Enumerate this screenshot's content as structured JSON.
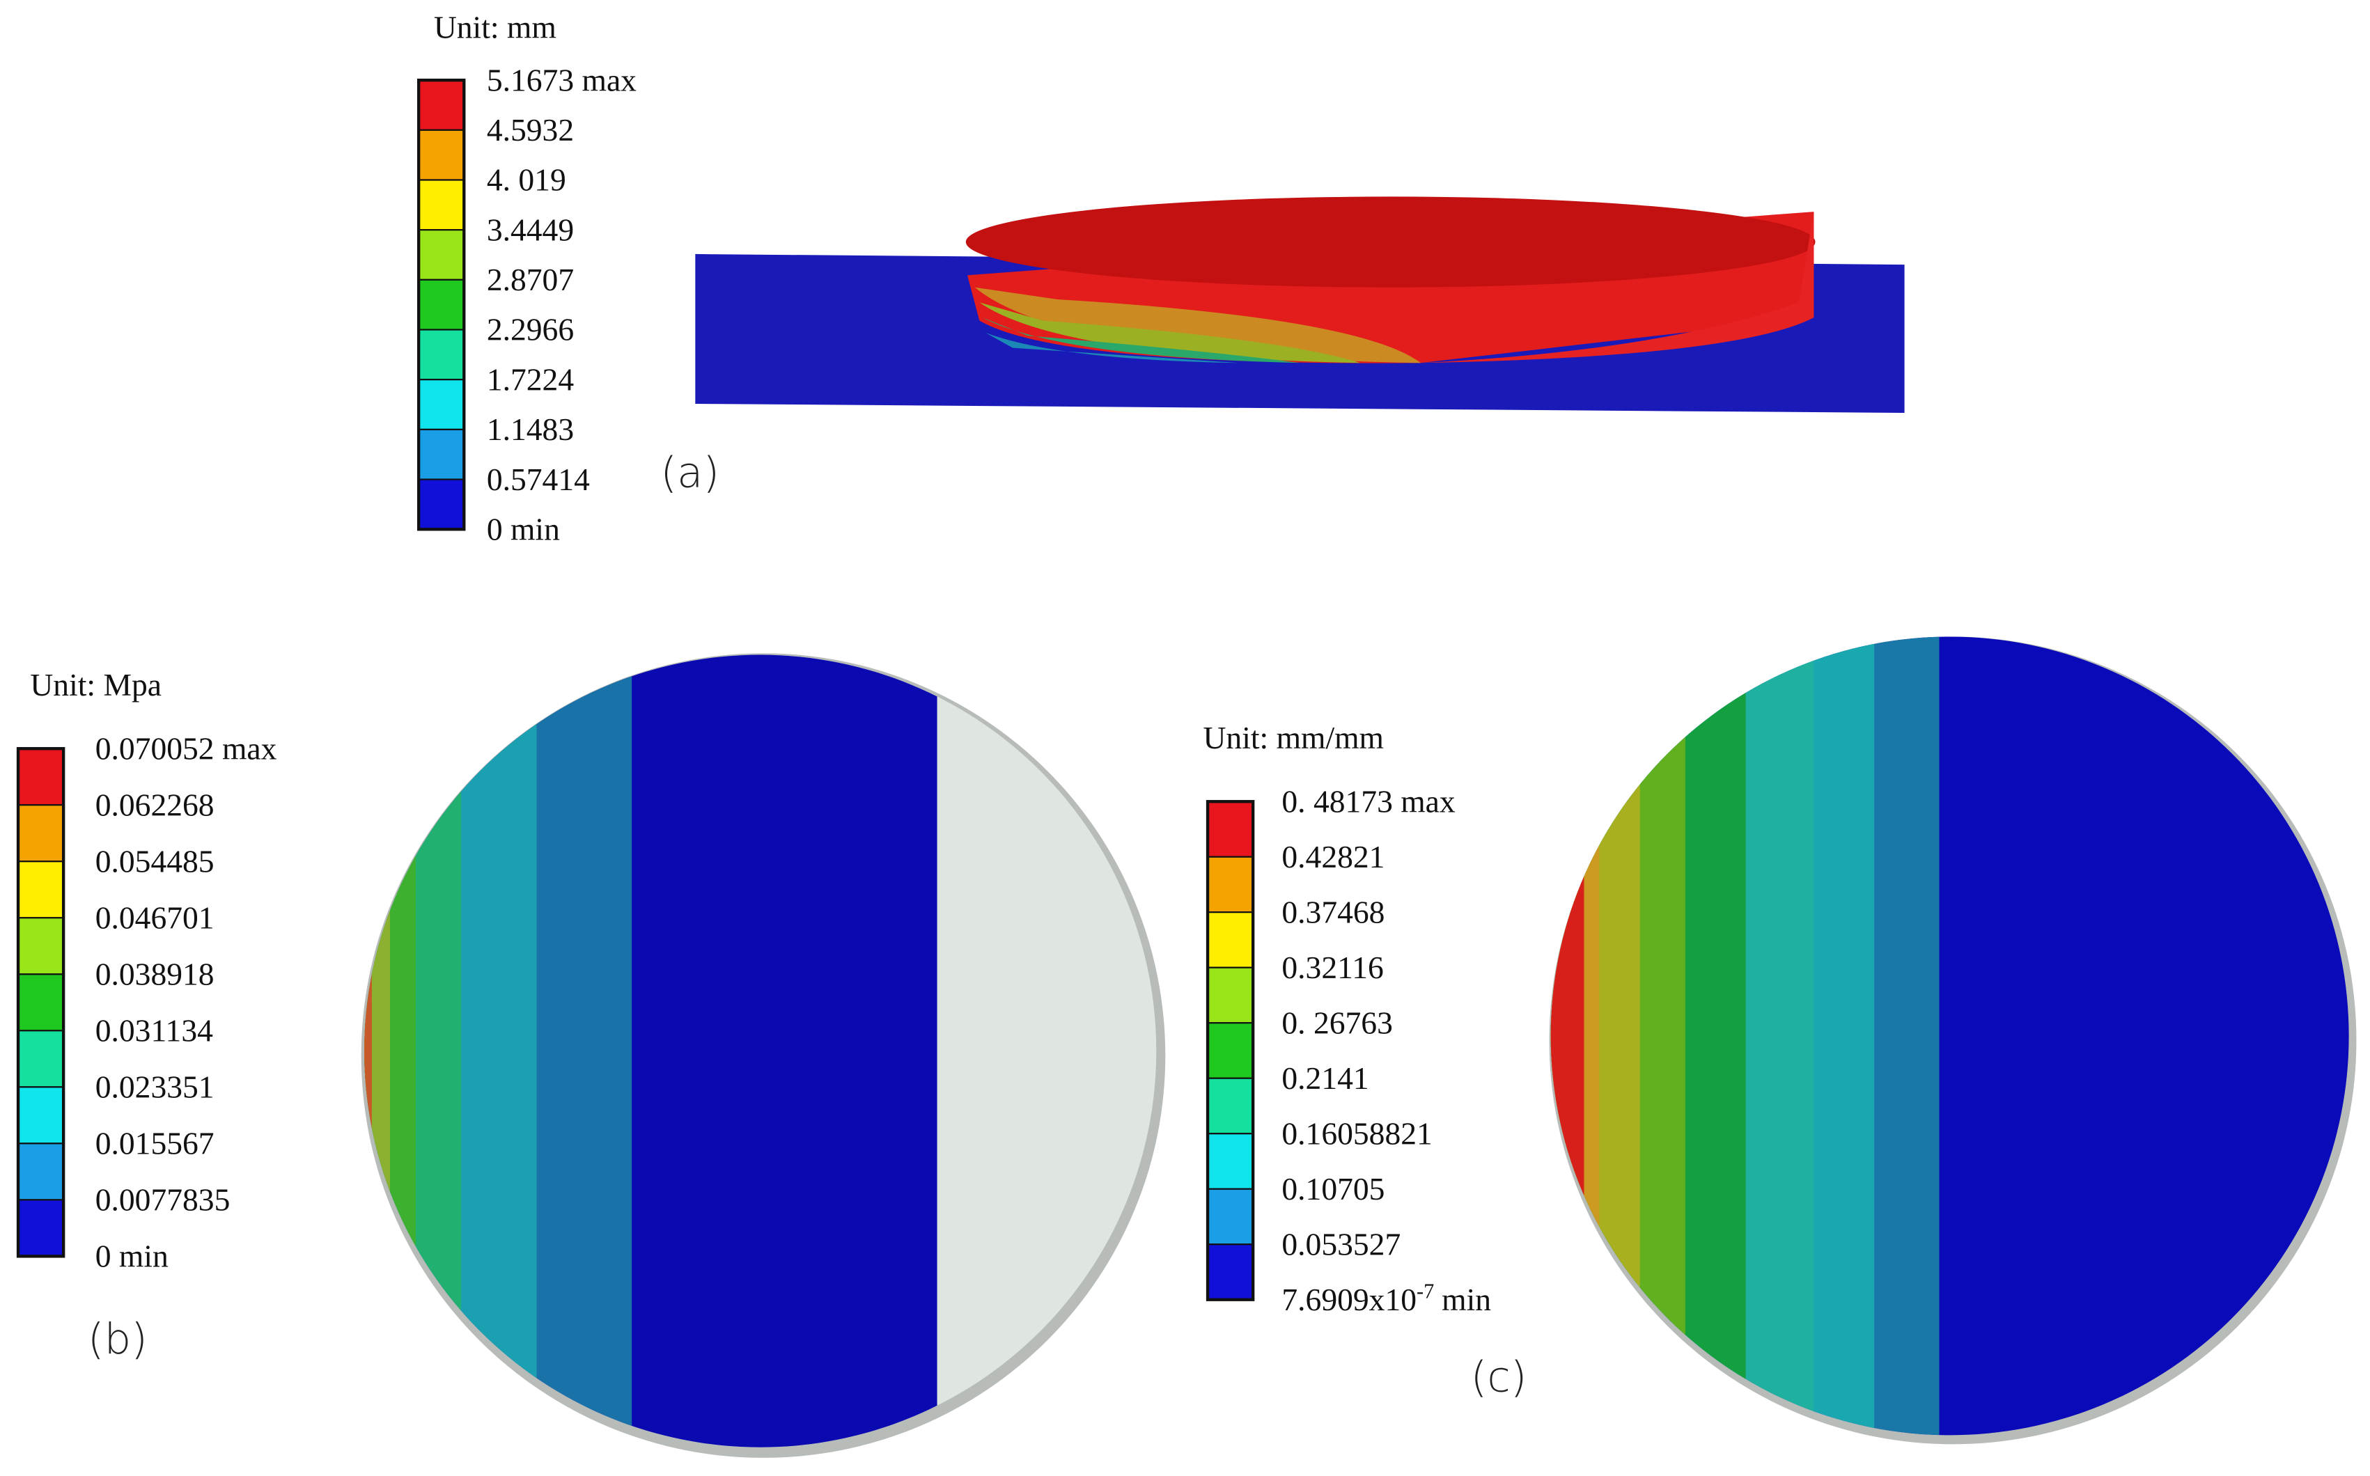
{
  "panels": [
    {
      "unit": "Unit: mm",
      "tag": "(a)",
      "levels": [
        "5.1673 max",
        "4.5932",
        "4. 019",
        "3.4449",
        "2.8707",
        "2.2966",
        "1.7224",
        "1.1483",
        "0.57414",
        "0 min"
      ]
    },
    {
      "unit": "Unit: Mpa",
      "tag": "(b)",
      "levels": [
        "0.070052 max",
        "0.062268",
        "0.054485",
        "0.046701",
        "0.038918",
        "0.031134",
        "0.023351",
        "0.015567",
        "0.0077835",
        "0 min"
      ]
    },
    {
      "unit": "Unit: mm/mm",
      "tag": "(c)",
      "levels": [
        "0. 48173 max",
        "0.42821",
        "0.37468",
        "0.32116",
        "0. 26763",
        "0.2141",
        "0.16058821",
        "0.10705",
        "0.053527",
        {
          "base": "7.6909x10",
          "exponent": "-7",
          "suffix": "min"
        }
      ]
    }
  ]
}
